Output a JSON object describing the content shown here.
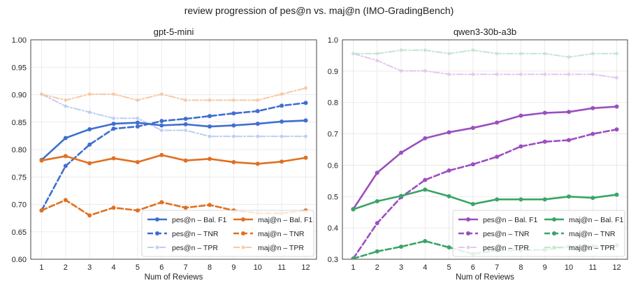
{
  "suptitle": "review progression of pes@n vs. maj@n (IMO-GradingBench)",
  "chart_data": [
    {
      "type": "line",
      "title": "gpt-5-mini",
      "xlabel": "Num of Reviews",
      "ylabel": "",
      "x": [
        1,
        2,
        3,
        4,
        5,
        6,
        7,
        8,
        9,
        10,
        11,
        12
      ],
      "ylim": [
        0.6,
        1.0
      ],
      "yticks": [
        "0.60",
        "0.65",
        "0.70",
        "0.75",
        "0.80",
        "0.85",
        "0.90",
        "0.95",
        "1.00"
      ],
      "legend_position": "lower-right",
      "series": [
        {
          "name": "pes@n – Bal. F1",
          "color": "#3f6fcf",
          "style": "solid",
          "emphasis": "strong",
          "values": [
            0.781,
            0.821,
            0.837,
            0.847,
            0.849,
            0.844,
            0.846,
            0.842,
            0.844,
            0.847,
            0.851,
            0.853
          ]
        },
        {
          "name": "pes@n – TNR",
          "color": "#3f6fcf",
          "style": "dashed",
          "emphasis": "strong",
          "values": [
            0.689,
            0.77,
            0.809,
            0.838,
            0.842,
            0.852,
            0.856,
            0.861,
            0.866,
            0.87,
            0.88,
            0.885
          ]
        },
        {
          "name": "pes@n – TPR",
          "color": "#bcd0f0",
          "style": "dashdot",
          "emphasis": "faint",
          "values": [
            0.901,
            0.879,
            0.868,
            0.857,
            0.857,
            0.835,
            0.835,
            0.824,
            0.824,
            0.824,
            0.824,
            0.824
          ]
        },
        {
          "name": "maj@n – Bal. F1",
          "color": "#e07020",
          "style": "solid",
          "emphasis": "strong",
          "values": [
            0.78,
            0.788,
            0.775,
            0.784,
            0.777,
            0.79,
            0.78,
            0.783,
            0.777,
            0.774,
            0.778,
            0.785
          ]
        },
        {
          "name": "maj@n – TNR",
          "color": "#e07020",
          "style": "dashed",
          "emphasis": "strong",
          "values": [
            0.689,
            0.708,
            0.68,
            0.694,
            0.689,
            0.704,
            0.694,
            0.699,
            0.689,
            0.684,
            0.684,
            0.689
          ]
        },
        {
          "name": "maj@n – TPR",
          "color": "#f6c9a6",
          "style": "dashdot",
          "emphasis": "faint",
          "values": [
            0.901,
            0.89,
            0.901,
            0.901,
            0.89,
            0.901,
            0.89,
            0.89,
            0.89,
            0.89,
            0.901,
            0.912
          ]
        }
      ]
    },
    {
      "type": "line",
      "title": "qwen3-30b-a3b",
      "xlabel": "Num of Reviews",
      "ylabel": "",
      "x": [
        1,
        2,
        3,
        4,
        5,
        6,
        7,
        8,
        9,
        10,
        11,
        12
      ],
      "ylim": [
        0.3,
        1.0
      ],
      "yticks": [
        "0.3",
        "0.4",
        "0.5",
        "0.6",
        "0.7",
        "0.8",
        "0.9",
        "1.0"
      ],
      "legend_position": "lower-right",
      "series": [
        {
          "name": "pes@n – Bal. F1",
          "color": "#9b4fbf",
          "style": "solid",
          "emphasis": "strong",
          "values": [
            0.46,
            0.576,
            0.64,
            0.686,
            0.705,
            0.719,
            0.736,
            0.758,
            0.767,
            0.77,
            0.782,
            0.787
          ]
        },
        {
          "name": "pes@n – TNR",
          "color": "#9b4fbf",
          "style": "dashed",
          "emphasis": "strong",
          "values": [
            0.302,
            0.415,
            0.498,
            0.553,
            0.583,
            0.603,
            0.627,
            0.66,
            0.675,
            0.68,
            0.7,
            0.714
          ]
        },
        {
          "name": "pes@n – TPR",
          "color": "#e4c8ee",
          "style": "dashdot",
          "emphasis": "faint",
          "values": [
            0.956,
            0.934,
            0.901,
            0.901,
            0.89,
            0.89,
            0.89,
            0.89,
            0.89,
            0.89,
            0.89,
            0.879
          ]
        },
        {
          "name": "maj@n – Bal. F1",
          "color": "#3aa466",
          "style": "solid",
          "emphasis": "strong",
          "values": [
            0.459,
            0.485,
            0.502,
            0.522,
            0.501,
            0.476,
            0.491,
            0.491,
            0.491,
            0.5,
            0.496,
            0.506
          ]
        },
        {
          "name": "maj@n – TNR",
          "color": "#3aa466",
          "style": "dashed",
          "emphasis": "strong",
          "values": [
            0.302,
            0.325,
            0.34,
            0.358,
            0.338,
            0.317,
            0.328,
            0.329,
            0.33,
            0.34,
            0.341,
            0.344
          ]
        },
        {
          "name": "maj@n – TPR",
          "color": "#c4e6d1",
          "style": "dashdot",
          "emphasis": "faint",
          "values": [
            0.956,
            0.956,
            0.967,
            0.967,
            0.956,
            0.967,
            0.956,
            0.956,
            0.956,
            0.945,
            0.956,
            0.956
          ]
        }
      ]
    }
  ]
}
